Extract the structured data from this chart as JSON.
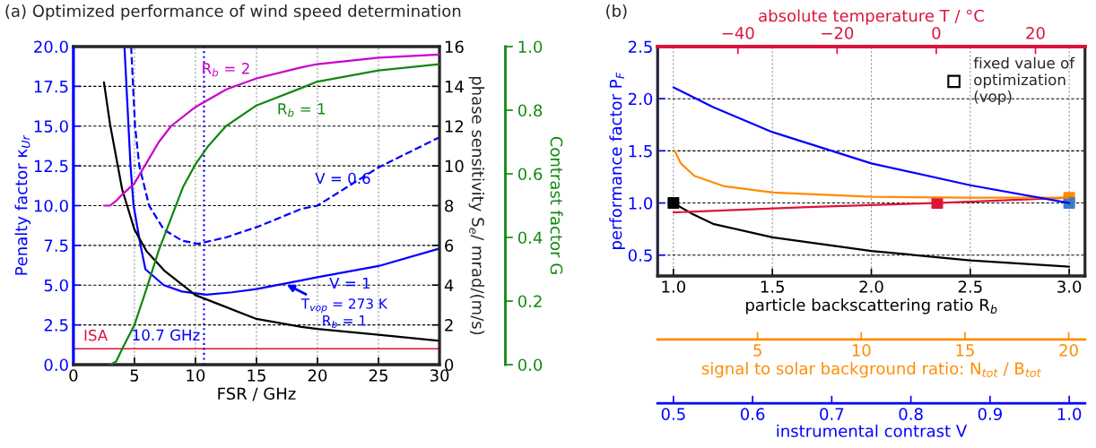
{
  "chart_data": [
    {
      "type": "line",
      "title": "(a) Optimized performance of wind speed determination",
      "xlabel": "FSR / GHz",
      "ylabel": "Penalty factor κ$_{Ur}$",
      "y2label": "phase sensitivity S$_{e}$/ mrad/(m/s)",
      "y3label": "Contrast factor G",
      "xlim": [
        0,
        30
      ],
      "xticks": [
        0,
        5,
        10,
        15,
        20,
        25,
        30
      ],
      "ylim": [
        0,
        20
      ],
      "yticks": [
        {
          "value": 0,
          "label": "0.0"
        },
        {
          "value": 2.5,
          "label": "2.5"
        },
        {
          "value": 5,
          "label": "5.0"
        },
        {
          "value": 7.5,
          "label": "7.5"
        },
        {
          "value": 10,
          "label": "10.0"
        },
        {
          "value": 12.5,
          "label": "12.5"
        },
        {
          "value": 15,
          "label": "15.0"
        },
        {
          "value": 17.5,
          "label": "17.5"
        },
        {
          "value": 20,
          "label": "20.0"
        }
      ],
      "y2lim": [
        0,
        16
      ],
      "y2ticks": [
        0,
        2,
        4,
        6,
        8,
        10,
        12,
        14,
        16
      ],
      "y3lim": [
        0,
        1
      ],
      "y3ticks": [
        {
          "value": 0,
          "label": "0.0"
        },
        {
          "value": 0.2,
          "label": "0.2"
        },
        {
          "value": 0.4,
          "label": "0.4"
        },
        {
          "value": 0.6,
          "label": "0.6"
        },
        {
          "value": 0.8,
          "label": "0.8"
        },
        {
          "value": 1.0,
          "label": "1.0"
        }
      ],
      "grid": true,
      "marker": "none",
      "series": [
        {
          "name": "V = 1",
          "color": "#0000ff",
          "x": [
            4.18,
            4.68,
            4.93,
            5.5,
            5.9,
            7.4,
            8.9,
            10.9,
            13,
            15,
            18.7,
            20,
            25,
            30
          ],
          "values": [
            20,
            12.5,
            10,
            7.5,
            6.0,
            5.0,
            4.6,
            4.4,
            4.55,
            4.75,
            5.3,
            5.5,
            6.2,
            7.3
          ]
        },
        {
          "name": "V = 0.6",
          "color": "#0000ff",
          "line_style": "dashed",
          "x": [
            4.73,
            5.05,
            5.4,
            6.2,
            7.4,
            8.9,
            10.2,
            12.5,
            15.2,
            18.7,
            20,
            25,
            30
          ],
          "values": [
            20,
            15,
            12.5,
            10,
            8.5,
            7.8,
            7.6,
            8.0,
            8.7,
            9.8,
            10.0,
            12.4,
            14.3
          ]
        },
        {
          "color": "#000000",
          "axis": "y2",
          "x": [
            2.5,
            3,
            4,
            5,
            6,
            7.5,
            10,
            12.5,
            15,
            18.7,
            20,
            25,
            30
          ],
          "values": [
            14.2,
            12.1,
            8.8,
            6.8,
            5.7,
            4.7,
            3.5,
            2.9,
            2.3,
            1.9,
            1.8,
            1.5,
            1.2
          ]
        },
        {
          "name": "R$_{b}$ = 2",
          "color": "#cc00cc",
          "axis": "y3",
          "x": [
            2.5,
            3,
            3.5,
            4,
            5,
            6,
            7,
            8,
            10,
            12.5,
            15,
            18.7,
            20,
            25,
            30
          ],
          "values": [
            0.5,
            0.5,
            0.515,
            0.535,
            0.57,
            0.635,
            0.7,
            0.75,
            0.81,
            0.865,
            0.9,
            0.935,
            0.945,
            0.965,
            0.975
          ]
        },
        {
          "name": "R$_{b}$ = 1",
          "color": "#118811",
          "axis": "y3",
          "x": [
            3,
            3.5,
            4,
            5,
            6,
            7,
            8,
            9,
            10,
            11,
            12.5,
            15,
            18.7,
            20,
            25,
            30
          ],
          "values": [
            0,
            0.01,
            0.05,
            0.125,
            0.24,
            0.36,
            0.46,
            0.56,
            0.63,
            0.685,
            0.75,
            0.815,
            0.87,
            0.89,
            0.925,
            0.945
          ]
        }
      ],
      "ref_lines": [
        {
          "axis": "y",
          "value": 1.0,
          "label": "ISA",
          "color": "#dc143c"
        },
        {
          "axis": "x",
          "value": 10.7,
          "label": "10.7 GHz",
          "color": "#0000ff",
          "line_style": "dotted"
        }
      ],
      "annotations": [
        {
          "text": "T$_{vop}$ = 273 K\nR$_{b}$ = 1",
          "x": 17.3,
          "y": 5.1
        }
      ]
    },
    {
      "type": "line",
      "title": "(b)",
      "xlabel": "particle backscattering ratio R$_{b}$",
      "ylabel": "performance factor P$_{F}$",
      "x2label": "absolute temperature T / °C",
      "xlim": [
        0.92,
        3.08
      ],
      "xticks": [
        {
          "value": 1.0,
          "label": "1.0"
        },
        {
          "value": 1.5,
          "label": "1.5"
        },
        {
          "value": 2.0,
          "label": "2.0"
        },
        {
          "value": 2.5,
          "label": "2.5"
        },
        {
          "value": 3.0,
          "label": "3.0"
        }
      ],
      "ylim": [
        0.3,
        2.5
      ],
      "yticks": [
        {
          "value": 0.5,
          "label": "0.5"
        },
        {
          "value": 1.0,
          "label": "1.0"
        },
        {
          "value": 1.5,
          "label": "1.5"
        },
        {
          "value": 2.0,
          "label": "2.0"
        },
        {
          "value": 2.5,
          "label": "2.5"
        }
      ],
      "x2lim": [
        -56.2,
        30.0
      ],
      "x2ticks": [
        {
          "value": -40,
          "label": "−40"
        },
        {
          "value": -20,
          "label": "−20"
        },
        0,
        20
      ],
      "grid": true,
      "marker": "none",
      "legend": "top right",
      "series": [
        {
          "color": "#000000",
          "x": [
            1.0,
            1.1,
            1.2,
            1.5,
            2.0,
            2.5,
            3.0
          ],
          "values": [
            1.0,
            0.89,
            0.8,
            0.67,
            0.54,
            0.45,
            0.39
          ]
        },
        {
          "color": "#dc143c",
          "axis": "x2",
          "x": [
            -53.0,
            -26.0,
            0,
            26.8
          ],
          "values": [
            0.91,
            0.96,
            1.0,
            1.05
          ]
        },
        {
          "type": "scatter",
          "marker": "square",
          "name": "fixed value of\noptimization\n(vop)",
          "x": [
            1.0,
            2.333,
            3.0,
            3.0
          ],
          "values": [
            1.0,
            1.0,
            1.05,
            1.0
          ],
          "colors": [
            "#000000",
            "#dc143c",
            "#ff8c00",
            "#3a7fc4"
          ]
        }
      ]
    },
    {
      "type": "line",
      "xlabel": "signal to solar background ratio: N$_{tot}$ / B$_{tot}$",
      "tick_labels": "x",
      "marker": "none",
      "xlim": [
        0.18,
        20.79
      ],
      "xticks": [
        5,
        10,
        15,
        20
      ],
      "ylim": [
        0.3,
        2.5
      ],
      "x2label": "instrumental contrast V",
      "x2lim": [
        0.48,
        1.02
      ],
      "x2ticks": [
        {
          "value": 0.5,
          "label": "0.5"
        },
        {
          "value": 0.6,
          "label": "0.6"
        },
        {
          "value": 0.7,
          "label": "0.7"
        },
        {
          "value": 0.8,
          "label": "0.8"
        },
        {
          "value": 0.9,
          "label": "0.9"
        },
        {
          "value": 1.0,
          "label": "1.0"
        }
      ],
      "series": [
        {
          "color": "#ff8c00",
          "x": [
            1.0,
            1.3,
            1.95,
            3.4,
            5.75,
            10.5,
            15.25,
            20
          ],
          "values": [
            1.5,
            1.38,
            1.26,
            1.16,
            1.1,
            1.06,
            1.05,
            1.05
          ]
        },
        {
          "color": "#0000ff",
          "axis": "x2",
          "x": [
            0.5,
            0.55,
            0.625,
            0.75,
            0.875,
            1.0
          ],
          "values": [
            2.11,
            1.92,
            1.68,
            1.38,
            1.17,
            1.0
          ]
        }
      ]
    }
  ]
}
